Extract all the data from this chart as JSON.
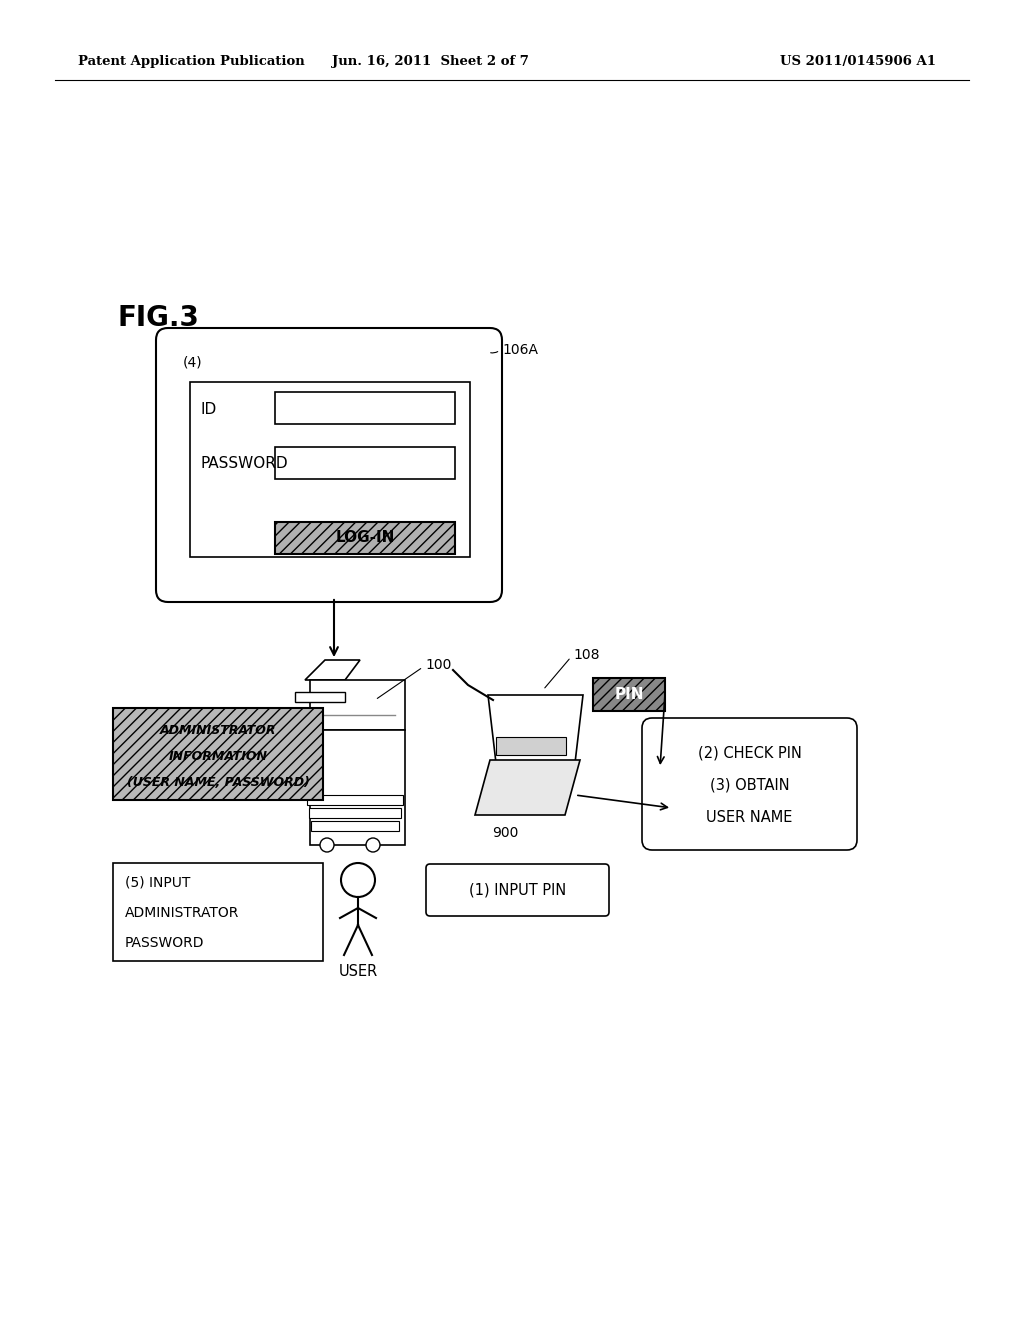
{
  "background_color": "#ffffff",
  "header_left": "Patent Application Publication",
  "header_mid": "Jun. 16, 2011  Sheet 2 of 7",
  "header_right": "US 2011/0145906 A1",
  "fig_label": "FIG.3",
  "screen_label": "106A",
  "screen_corner_label": "(4)",
  "id_label": "ID",
  "password_label": "PASSWORD",
  "login_label": "LOG-IN",
  "printer_label": "100",
  "card_reader_label": "108",
  "card_label": "900",
  "pin_label": "PIN",
  "admin_info_lines": [
    "ADMINISTRATOR",
    "INFORMATION",
    "(USER NAME, PASSWORD)"
  ],
  "input_pin_label": "(1) INPUT PIN",
  "check_pin_lines": [
    "(2) CHECK PIN",
    "(3) OBTAIN",
    "USER NAME"
  ],
  "input_admin_lines": [
    "(5) INPUT",
    "ADMINISTRATOR",
    "PASSWORD"
  ],
  "user_label": "USER",
  "line_color": "#000000",
  "hatch_color": "#999999"
}
